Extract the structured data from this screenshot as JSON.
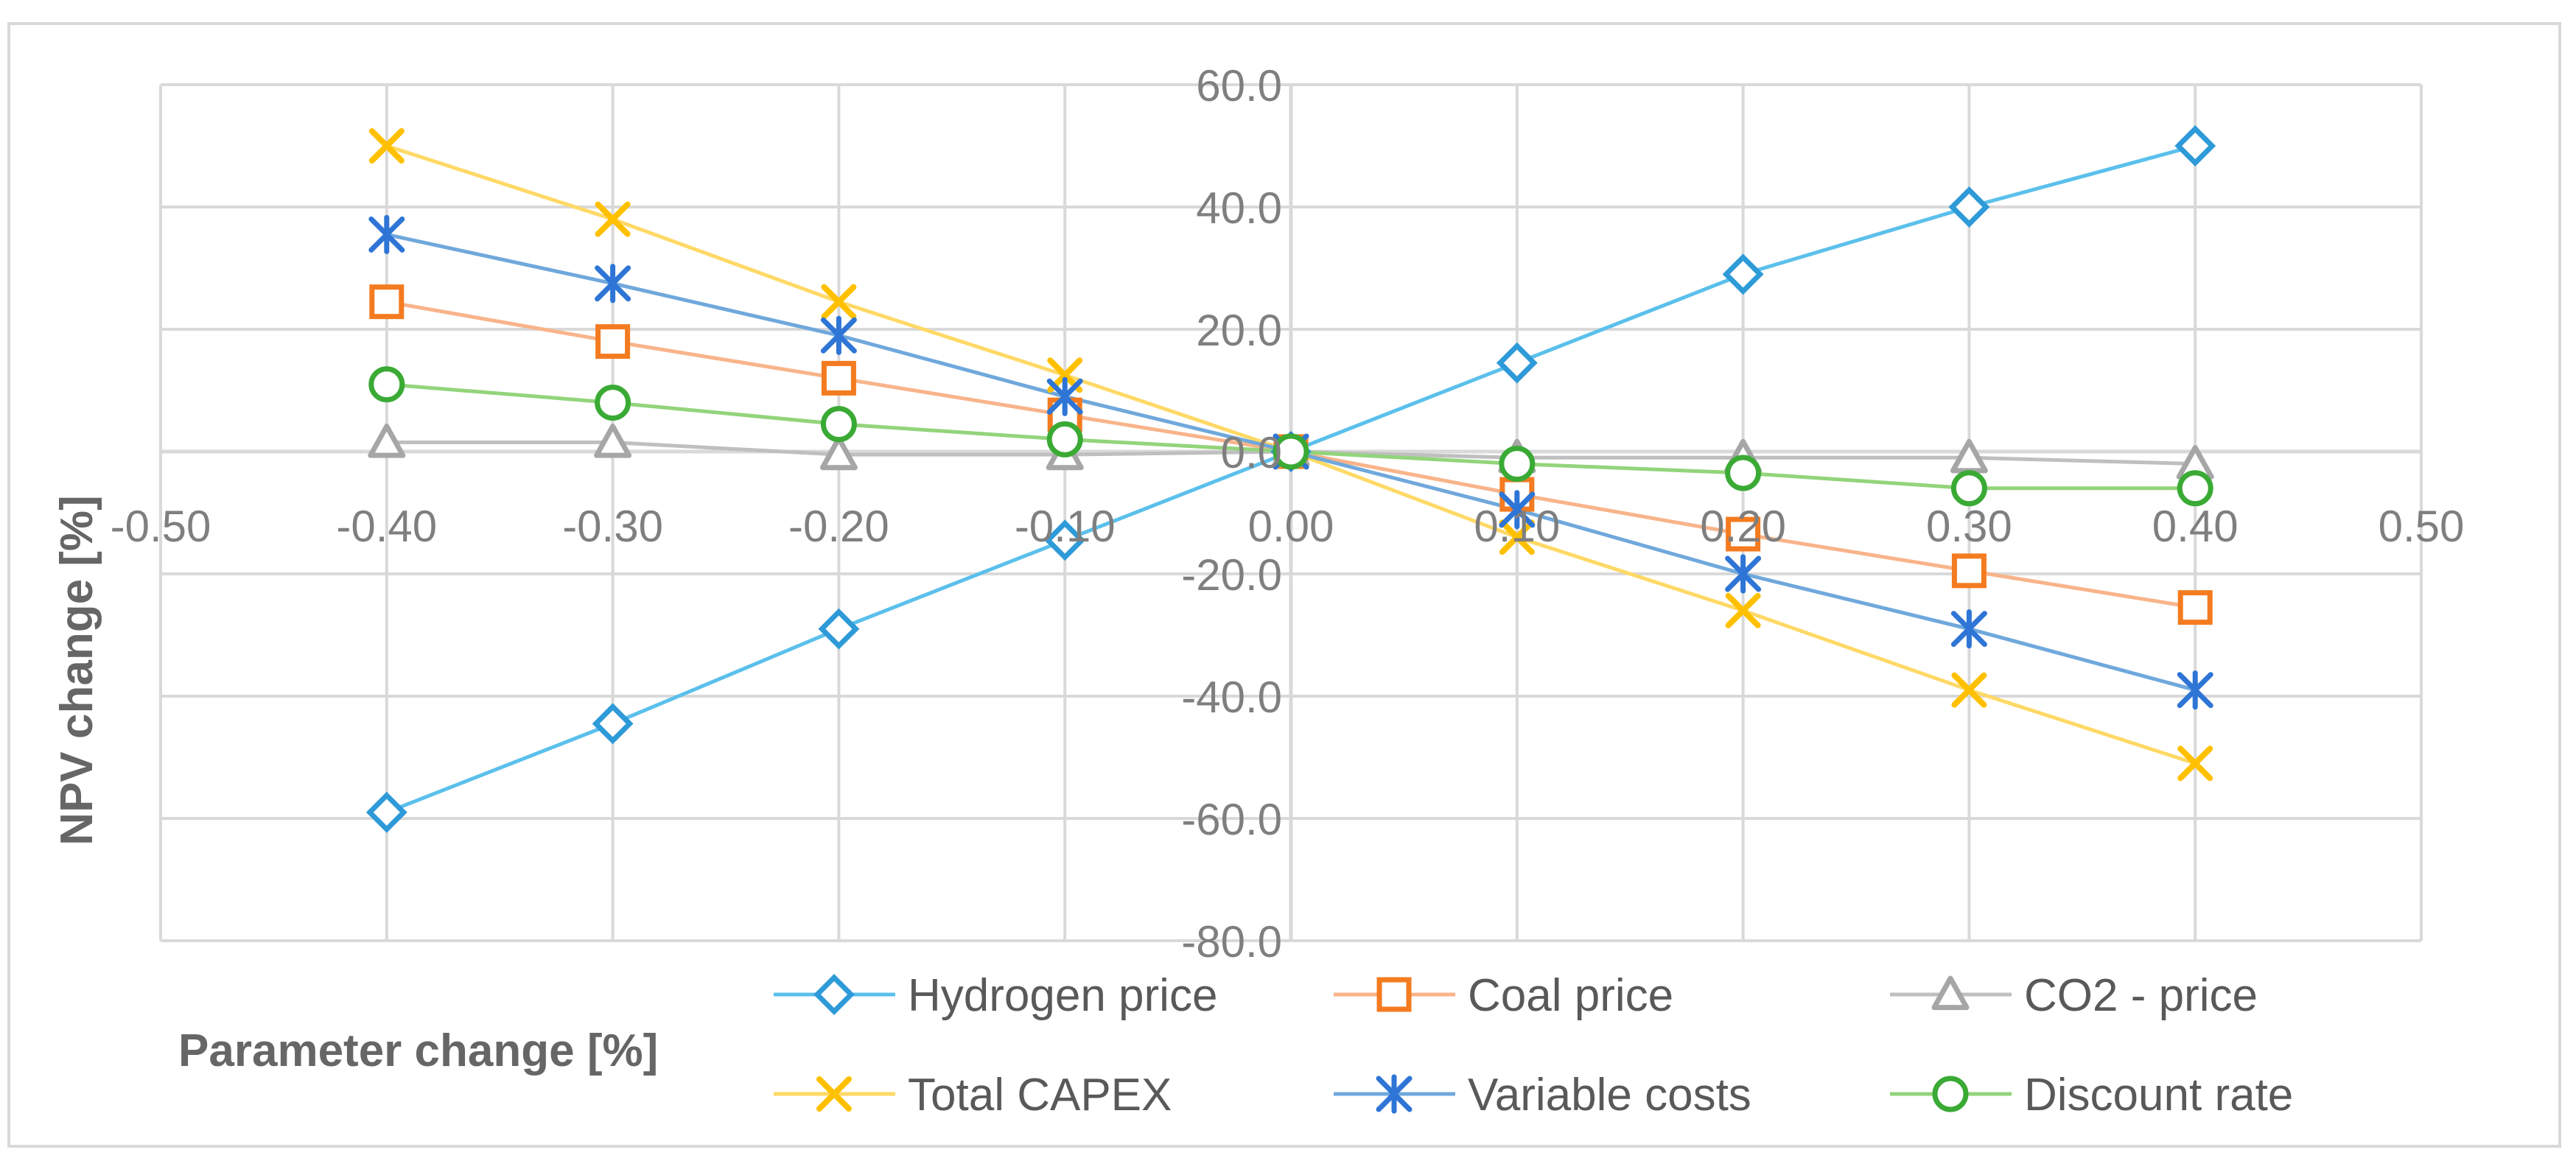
{
  "chart_data": {
    "type": "line",
    "title": "",
    "xlabel": "Parameter change [%]",
    "ylabel": "NPV change [%]",
    "xlim": [
      -0.5,
      0.5
    ],
    "ylim": [
      -80,
      60
    ],
    "x_ticks": [
      -0.5,
      -0.4,
      -0.3,
      -0.2,
      -0.1,
      0.0,
      0.1,
      0.2,
      0.3,
      0.4,
      0.5
    ],
    "x_tick_labels": [
      "-0.50",
      "-0.40",
      "-0.30",
      "-0.20",
      "-0.10",
      "0.00",
      "0.10",
      "0.20",
      "0.30",
      "0.40",
      "0.50"
    ],
    "y_ticks": [
      -80,
      -60,
      -40,
      -20,
      0,
      20,
      40,
      60
    ],
    "y_tick_labels": [
      "-80.0",
      "-60.0",
      "-40.0",
      "-20.0",
      "0.0",
      "20.0",
      "40.0",
      "60.0"
    ],
    "grid": true,
    "legend_position": "bottom",
    "x": [
      -0.4,
      -0.3,
      -0.2,
      -0.1,
      0.0,
      0.1,
      0.2,
      0.3,
      0.4
    ],
    "series": [
      {
        "name": "Hydrogen price",
        "color": "#5bc0eb",
        "marker_color": "#2e9ad8",
        "marker": "diamond",
        "values": [
          -59,
          -44.5,
          -29,
          -14.5,
          0,
          14.5,
          29,
          40,
          50
        ]
      },
      {
        "name": "Coal price",
        "color": "#f8b48a",
        "marker_color": "#f47b20",
        "marker": "square",
        "values": [
          24.5,
          18,
          12,
          6,
          0,
          -7,
          -13.5,
          -19.5,
          -25.5
        ]
      },
      {
        "name": "CO2 - price",
        "color": "#bfbfbf",
        "marker_color": "#a6a6a6",
        "marker": "triangle",
        "values": [
          1.5,
          1.5,
          -0.5,
          -0.5,
          0,
          -1,
          -1,
          -1,
          -2
        ]
      },
      {
        "name": "Total CAPEX",
        "color": "#ffd966",
        "marker_color": "#ffc000",
        "marker": "x",
        "values": [
          50,
          38,
          24.5,
          12.5,
          0,
          -14,
          -26,
          -39,
          -51
        ]
      },
      {
        "name": "Variable costs",
        "color": "#6fa8dc",
        "marker_color": "#2e75d6",
        "marker": "asterisk",
        "values": [
          35.5,
          27.5,
          19,
          9,
          0,
          -9.5,
          -20,
          -29,
          -39
        ]
      },
      {
        "name": "Discount rate",
        "color": "#93d47b",
        "marker_color": "#3aaa35",
        "marker": "circle",
        "values": [
          11,
          8,
          4.5,
          2,
          0,
          -2,
          -3.5,
          -6,
          -6
        ]
      }
    ]
  }
}
